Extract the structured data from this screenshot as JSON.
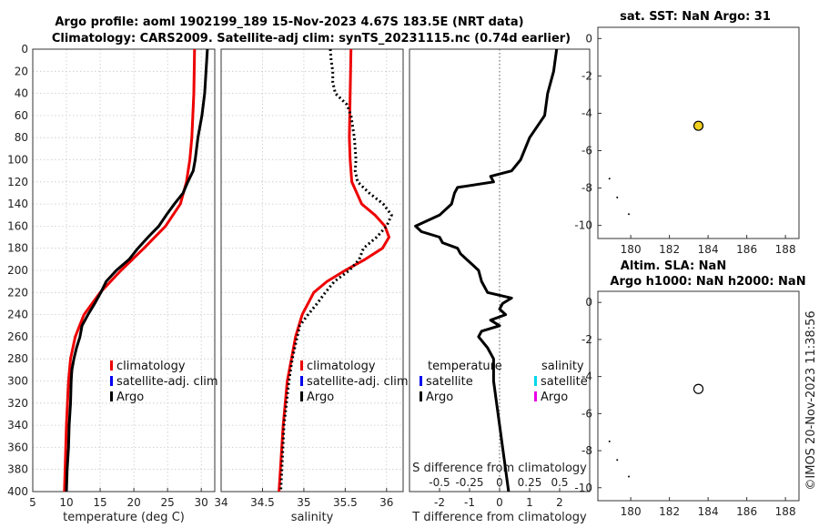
{
  "chart_data": {
    "type": "line",
    "title_line1": "Argo profile: aoml 1902199_189 15-Nov-2023 4.67S 183.5E (NRT data)",
    "title_line2": "Climatology: CARS2009. Satellite-adj clim: synTS_20231115.nc (0.74d earlier)",
    "watermark": "©IMOS 20-Nov-2023 11:38:56",
    "depth_ticks": [
      "0",
      "20",
      "40",
      "60",
      "80",
      "100",
      "120",
      "140",
      "160",
      "180",
      "200",
      "220",
      "240",
      "260",
      "280",
      "300",
      "320",
      "340",
      "360",
      "380",
      "400"
    ],
    "panels": {
      "temperature": {
        "xlabel": "temperature (deg C)",
        "xlim": [
          5,
          32
        ],
        "xticks": [
          "5",
          "10",
          "15",
          "20",
          "25",
          "30"
        ],
        "legend": [
          "climatology",
          "satellite-adj. clim",
          "Argo"
        ],
        "series": [
          {
            "name": "climatology",
            "color": "#ee0000",
            "depth": [
              0,
              40,
              80,
              100,
              120,
              140,
              160,
              180,
              200,
              220,
              240,
              260,
              280,
              300,
              340,
              400
            ],
            "values": [
              29.0,
              28.9,
              28.6,
              28.3,
              27.8,
              26.9,
              24.7,
              21.5,
              18.1,
              15.0,
              12.6,
              11.3,
              10.6,
              10.3,
              10.0,
              9.7
            ]
          },
          {
            "name": "Argo",
            "color": "#000000",
            "depth": [
              0,
              20,
              40,
              60,
              80,
              100,
              110,
              120,
              130,
              140,
              150,
              160,
              170,
              180,
              190,
              200,
              210,
              220,
              230,
              240,
              250,
              260,
              270,
              280,
              290,
              300,
              320,
              340,
              360,
              380,
              400
            ],
            "values": [
              30.9,
              30.7,
              30.5,
              30.1,
              29.5,
              29.1,
              28.8,
              28.0,
              27.3,
              26.0,
              24.8,
              23.7,
              22.1,
              20.6,
              19.3,
              17.4,
              15.9,
              15.1,
              14.2,
              13.2,
              12.3,
              12.0,
              11.5,
              11.1,
              10.8,
              10.7,
              10.6,
              10.4,
              10.3,
              10.1,
              10.0
            ]
          }
        ]
      },
      "salinity": {
        "xlabel": "salinity",
        "xlim": [
          34,
          36.2
        ],
        "xticks": [
          "34",
          "34.5",
          "35",
          "35.5",
          "36"
        ],
        "legend": [
          "climatology",
          "satellite-adj. clim",
          "Argo"
        ],
        "series": [
          {
            "name": "climatology",
            "color": "#ee0000",
            "depth": [
              0,
              40,
              80,
              100,
              120,
              140,
              150,
              160,
              170,
              180,
              190,
              200,
              210,
              220,
              240,
              260,
              280,
              300,
              340,
              400
            ],
            "values": [
              35.57,
              35.56,
              35.55,
              35.56,
              35.58,
              35.7,
              35.86,
              35.98,
              36.03,
              35.95,
              35.74,
              35.5,
              35.28,
              35.12,
              34.98,
              34.9,
              34.85,
              34.8,
              34.75,
              34.7
            ]
          },
          {
            "name": "Argo",
            "color": "#000000",
            "dashed": true,
            "depth": [
              0,
              10,
              20,
              30,
              40,
              50,
              60,
              80,
              100,
              110,
              120,
              130,
              140,
              150,
              160,
              170,
              180,
              190,
              200,
              210,
              220,
              230,
              240,
              250,
              260,
              280,
              300,
              340,
              400
            ],
            "values": [
              35.32,
              35.33,
              35.35,
              35.35,
              35.38,
              35.52,
              35.57,
              35.61,
              35.63,
              35.62,
              35.65,
              35.79,
              35.96,
              36.06,
              36.0,
              35.88,
              35.72,
              35.67,
              35.55,
              35.37,
              35.26,
              35.16,
              35.05,
              34.95,
              34.92,
              34.86,
              34.82,
              34.76,
              34.72
            ]
          }
        ]
      },
      "difference": {
        "xlabel": "T difference from climatology",
        "xlabel_top": "S difference from climatology",
        "xlim": [
          -3,
          3
        ],
        "xticks": [
          "-2",
          "-1",
          "0",
          "1",
          "2"
        ],
        "top_xticks": [
          "-0.5",
          "-0.25",
          "0",
          "0.25",
          "0.5"
        ],
        "legend_left_title": "temperature",
        "legend_right_title": "salinity",
        "legend_left": [
          "satellite",
          "Argo"
        ],
        "legend_right": [
          "satellite",
          "Argo"
        ],
        "series": [
          {
            "name": "T difference Argo",
            "color": "#000000",
            "depth": [
              0,
              20,
              40,
              60,
              80,
              100,
              110,
              115,
              120,
              125,
              130,
              140,
              150,
              160,
              165,
              170,
              175,
              180,
              185,
              190,
              195,
              200,
              210,
              220,
              225,
              230,
              235,
              240,
              245,
              250,
              255,
              260,
              270,
              280,
              290,
              300,
              320,
              340,
              360,
              380,
              400
            ],
            "values": [
              1.9,
              1.8,
              1.6,
              1.5,
              1.0,
              0.7,
              0.4,
              -0.3,
              -0.2,
              -1.4,
              -1.5,
              -1.6,
              -2.0,
              -2.8,
              -2.6,
              -2.0,
              -1.9,
              -1.4,
              -1.3,
              -1.1,
              -0.9,
              -0.7,
              -0.6,
              -0.4,
              0.4,
              0.1,
              0.0,
              0.2,
              -0.3,
              0.0,
              -0.6,
              -0.7,
              -0.4,
              -0.2,
              -0.2,
              -0.2,
              -0.1,
              0.0,
              0.1,
              0.2,
              0.3
            ]
          }
        ]
      }
    },
    "map_top": {
      "title": "sat. SST: NaN Argo: 31",
      "xticks": [
        "180",
        "182",
        "184",
        "186",
        "188"
      ],
      "yticks": [
        "0",
        "-2",
        "-4",
        "-6",
        "-8",
        "-10"
      ],
      "xlim": [
        178.3,
        188.7
      ],
      "ylim": [
        -10.7,
        0.6
      ],
      "point": {
        "lon": 183.5,
        "lat": -4.67,
        "fill": "#f0d020"
      },
      "dots": [
        {
          "lon": 178.9,
          "lat": -7.5
        },
        {
          "lon": 179.3,
          "lat": -8.5
        },
        {
          "lon": 179.9,
          "lat": -9.4
        }
      ]
    },
    "map_bottom": {
      "title_line1": "Altim. SLA: NaN",
      "title_line2": "Argo h1000: NaN h2000: NaN",
      "xticks": [
        "180",
        "182",
        "184",
        "186",
        "188"
      ],
      "yticks": [
        "0",
        "-2",
        "-4",
        "-6",
        "-8",
        "-10"
      ],
      "xlim": [
        178.3,
        188.7
      ],
      "ylim": [
        -10.7,
        0.6
      ],
      "point": {
        "lon": 183.5,
        "lat": -4.67,
        "fill": "#ffffff"
      },
      "dots": [
        {
          "lon": 178.9,
          "lat": -7.5
        },
        {
          "lon": 179.3,
          "lat": -8.5
        },
        {
          "lon": 179.9,
          "lat": -9.4
        }
      ]
    },
    "legend_colors": {
      "climatology": "#ee0000",
      "satellite": "#0000ee",
      "argo": "#000000",
      "salinity_satellite": "#00d8e8",
      "salinity_argo": "#e800e8"
    }
  }
}
